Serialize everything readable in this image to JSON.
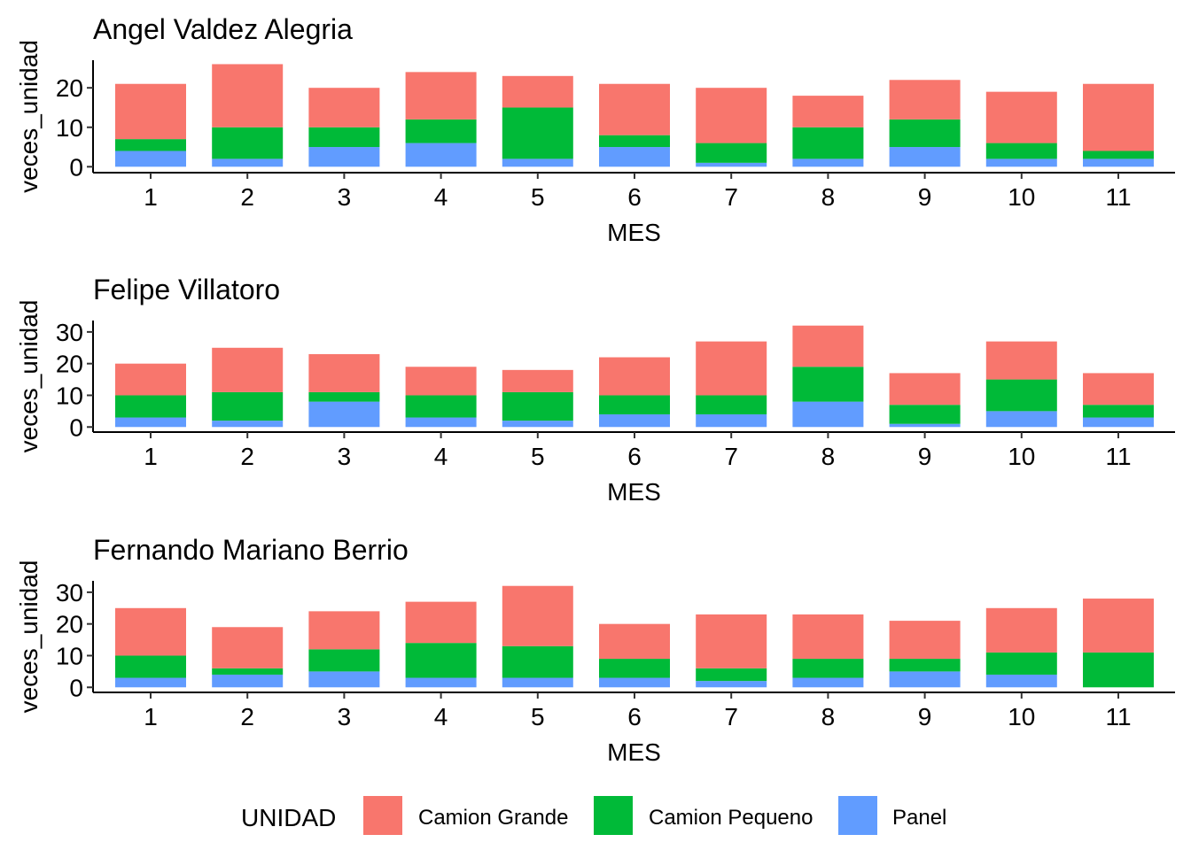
{
  "legend": {
    "title": "UNIDAD",
    "items": [
      {
        "label": "Camion Grande",
        "color": "#F8766D"
      },
      {
        "label": "Camion Pequeno",
        "color": "#00BA38"
      },
      {
        "label": "Panel",
        "color": "#619CFF"
      }
    ]
  },
  "chart_data": [
    {
      "type": "bar",
      "stacked": true,
      "title": "Angel Valdez Alegria",
      "xlabel": "MES",
      "ylabel": "veces_unidad",
      "categories": [
        "1",
        "2",
        "3",
        "4",
        "5",
        "6",
        "7",
        "8",
        "9",
        "10",
        "11"
      ],
      "y_ticks": [
        0,
        10,
        20
      ],
      "ylim": [
        -1.5,
        27
      ],
      "grid": false,
      "series": [
        {
          "name": "Panel",
          "values": [
            4,
            2,
            5,
            6,
            2,
            5,
            1,
            2,
            5,
            2,
            2
          ]
        },
        {
          "name": "Camion Pequeno",
          "values": [
            3,
            8,
            5,
            6,
            13,
            3,
            5,
            8,
            7,
            4,
            2
          ]
        },
        {
          "name": "Camion Grande",
          "values": [
            14,
            16,
            10,
            12,
            8,
            13,
            14,
            8,
            10,
            13,
            17
          ]
        }
      ]
    },
    {
      "type": "bar",
      "stacked": true,
      "title": "Felipe Villatoro",
      "xlabel": "MES",
      "ylabel": "veces_unidad",
      "categories": [
        "1",
        "2",
        "3",
        "4",
        "5",
        "6",
        "7",
        "8",
        "9",
        "10",
        "11"
      ],
      "y_ticks": [
        0,
        10,
        20,
        30
      ],
      "ylim": [
        -1.6,
        33.6
      ],
      "grid": false,
      "series": [
        {
          "name": "Panel",
          "values": [
            3,
            2,
            8,
            3,
            2,
            4,
            4,
            8,
            1,
            5,
            3
          ]
        },
        {
          "name": "Camion Pequeno",
          "values": [
            7,
            9,
            3,
            7,
            9,
            6,
            6,
            11,
            6,
            10,
            4
          ]
        },
        {
          "name": "Camion Grande",
          "values": [
            10,
            14,
            12,
            9,
            7,
            12,
            17,
            13,
            10,
            12,
            10
          ]
        }
      ]
    },
    {
      "type": "bar",
      "stacked": true,
      "title": "Fernando Mariano Berrio",
      "xlabel": "MES",
      "ylabel": "veces_unidad",
      "categories": [
        "1",
        "2",
        "3",
        "4",
        "5",
        "6",
        "7",
        "8",
        "9",
        "10",
        "11"
      ],
      "y_ticks": [
        0,
        10,
        20,
        30
      ],
      "ylim": [
        -1.6,
        33.6
      ],
      "grid": false,
      "series": [
        {
          "name": "Panel",
          "values": [
            3,
            4,
            5,
            3,
            3,
            3,
            2,
            3,
            5,
            4,
            0
          ]
        },
        {
          "name": "Camion Pequeno",
          "values": [
            7,
            2,
            7,
            11,
            10,
            6,
            4,
            6,
            4,
            7,
            11
          ]
        },
        {
          "name": "Camion Grande",
          "values": [
            15,
            13,
            12,
            13,
            19,
            11,
            17,
            14,
            12,
            14,
            17
          ]
        }
      ]
    }
  ]
}
